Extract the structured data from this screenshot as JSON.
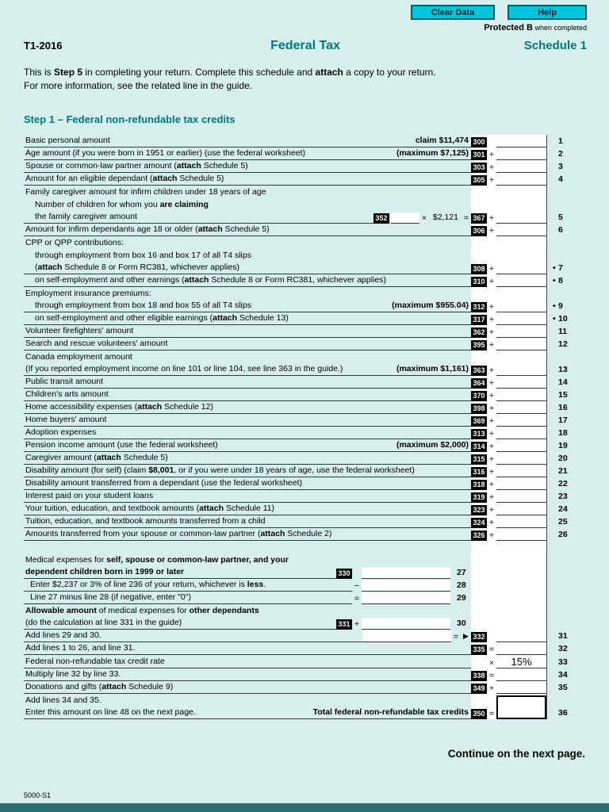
{
  "toolbar": {
    "clear_data_label": "Clear Data",
    "help_label": "Help",
    "protected_label_bold": "Protected B",
    "protected_label_rest": "when completed"
  },
  "header": {
    "form_id": "T1-2016",
    "title": "Federal Tax",
    "schedule": "Schedule 1"
  },
  "intro": {
    "line1": "This is <b>Step 5</b> in completing your return. Complete this schedule and <b>attach</b> a copy to your return.",
    "line2": "For more information, see the related line in the guide."
  },
  "step1_heading": "Step 1 – Federal non-refundable tax credits",
  "colors": {
    "teal_accent": "#00787c",
    "button_cyan": "#00c6da",
    "page_background": "#d6efec",
    "footer_bar": "#2a6e71",
    "field_code_background": "#000000"
  },
  "rows": {
    "r1": {
      "label": "Basic personal amount",
      "hint": "claim $11,474",
      "code": "300",
      "op": "",
      "num": "1"
    },
    "r2": {
      "label": "Age amount (if you were born in 1951 or earlier) (use the federal worksheet)",
      "hint": "(maximum $7,125)",
      "code": "301",
      "op": "+",
      "num": "2"
    },
    "r3": {
      "label": "Spouse or common-law partner amount (<b>attach</b> Schedule 5)",
      "code": "303",
      "op": "+",
      "num": "3"
    },
    "r4": {
      "label": "Amount for an eligible dependant (<b>attach</b> Schedule 5)",
      "code": "305",
      "op": "+",
      "num": "4"
    },
    "r5": {
      "head": "Family caregiver amount for infirm children under 18 years of age",
      "sub1": "Number of children for whom you <b>are claiming</b>",
      "sub2": "the family caregiver amount",
      "count_code": "352",
      "times": "×",
      "unit_amount": "$2,121",
      "equals": "=",
      "code": "367",
      "op": "+",
      "num": "5"
    },
    "r6": {
      "label": "Amount for infirm dependants age 18 or older (<b>attach</b> Schedule 5)",
      "code": "306",
      "op": "+",
      "num": "6"
    },
    "r7": {
      "head": "CPP or QPP contributions:",
      "sub1": "through employment from box 16 and box 17 of all T4 slips",
      "sub2": "(<b>attach</b> Schedule 8 or Form RC381, whichever applies)",
      "code": "308",
      "op": "+",
      "bullet": "•",
      "num": "7"
    },
    "r8": {
      "label": "on self-employment and other earnings (<b>attach</b> Schedule 8 or Form RC381, whichever applies)",
      "code": "310",
      "op": "+",
      "bullet": "•",
      "num": "8"
    },
    "r9": {
      "head": "Employment insurance premiums:",
      "sub1": "through employment from box 18 and box 55 of all T4 slips",
      "hint": "(maximum $955.04)",
      "code": "312",
      "op": "+",
      "bullet": "•",
      "num": "9"
    },
    "r10": {
      "label": "on self-employment and other eligible earnings (<b>attach</b> Schedule 13)",
      "code": "317",
      "op": "+",
      "bullet": "•",
      "num": "10"
    },
    "r11": {
      "label": "Volunteer firefighters' amount",
      "code": "362",
      "op": "+",
      "num": "11"
    },
    "r12": {
      "label": "Search and rescue volunteers' amount",
      "code": "395",
      "op": "+",
      "num": "12"
    },
    "r13": {
      "head": "Canada employment amount",
      "sub1": "(If you reported employment income on line 101 or line 104, see line 363 in the guide.)",
      "hint": "(maximum $1,161)",
      "code": "363",
      "op": "+",
      "num": "13"
    },
    "r14": {
      "label": "Public transit amount",
      "code": "364",
      "op": "+",
      "num": "14"
    },
    "r15": {
      "label": "Children's arts amount",
      "code": "370",
      "op": "+",
      "num": "15"
    },
    "r16": {
      "label": "Home accessibility expenses (<b>attach</b> Schedule 12)",
      "code": "398",
      "op": "+",
      "num": "16"
    },
    "r17": {
      "label": "Home buyers' amount",
      "code": "369",
      "op": "+",
      "num": "17"
    },
    "r18": {
      "label": "Adoption expenses",
      "code": "313",
      "op": "+",
      "num": "18"
    },
    "r19": {
      "label": "Pension income amount (use the federal worksheet)",
      "hint": "(maximum $2,000)",
      "code": "314",
      "op": "+",
      "num": "19"
    },
    "r20": {
      "label": "Caregiver amount (<b>attach</b> Schedule 5)",
      "code": "315",
      "op": "+",
      "num": "20"
    },
    "r21": {
      "label": "Disability amount (for self) (claim <b>$8,001</b>, or if you were under 18 years of age, use the federal worksheet)",
      "code": "316",
      "op": "+",
      "num": "21"
    },
    "r22": {
      "label": "Disability amount transferred from a dependant (use the federal worksheet)",
      "code": "318",
      "op": "+",
      "num": "22"
    },
    "r23": {
      "label": "Interest paid on your student loans",
      "code": "319",
      "op": "+",
      "num": "23"
    },
    "r24": {
      "label": "Your tuition, education, and textbook amounts (<b>attach</b> Schedule 11)",
      "code": "323",
      "op": "+",
      "num": "24"
    },
    "r25": {
      "label": "Tuition, education, and textbook amounts transferred from a child",
      "code": "324",
      "op": "+",
      "num": "25"
    },
    "r26": {
      "label": "Amounts transferred from your spouse or common-law partner (<b>attach</b> Schedule 2)",
      "code": "326",
      "op": "+",
      "num": "26"
    },
    "r27": {
      "head": "Medical expenses for <b>self, spouse or common-law partner, and your</b>",
      "sub1": "<b>dependent children born in 1999 or later</b>",
      "code": "330",
      "op": "",
      "num": "27"
    },
    "r28": {
      "label": "Enter $2,237 or 3% of line 236 of your return, whichever is <b>less</b>.",
      "op": "−",
      "num": "28"
    },
    "r29": {
      "label": "Line 27 minus line 28 (if negative, enter \"0\")",
      "op": "=",
      "num": "29"
    },
    "r30": {
      "head": "<b>Allowable amount</b> of medical expenses for <b>other dependants</b>",
      "sub1": "(do the calculation at line 331 in the guide)",
      "code": "331",
      "op": "+",
      "num": "30"
    },
    "r31": {
      "label": "Add lines 29 and 30.",
      "equals": "=",
      "arrow": "▶",
      "code": "332",
      "op": "",
      "num": "31"
    },
    "r32": {
      "label": "Add lines 1 to 26, and line 31.",
      "code": "335",
      "op": "=",
      "num": "32"
    },
    "r33": {
      "label": "Federal non-refundable tax credit rate",
      "op": "×",
      "rate": "15%",
      "num": "33"
    },
    "r34": {
      "label": "Multiply line 32 by line 33.",
      "code": "338",
      "op": "=",
      "num": "34"
    },
    "r35": {
      "label": "Donations and gifts (<b>attach</b> Schedule 9)",
      "code": "349",
      "op": "+",
      "num": "35"
    },
    "r36": {
      "head": "Add lines 34 and 35.",
      "sub1": "Enter this amount on line 48 on the next page.",
      "total_label": "Total federal non-refundable tax credits",
      "code": "350",
      "op": "=",
      "num": "36"
    }
  },
  "footer": {
    "continue_note": "Continue on the next page.",
    "form_code": "5000-S1"
  }
}
